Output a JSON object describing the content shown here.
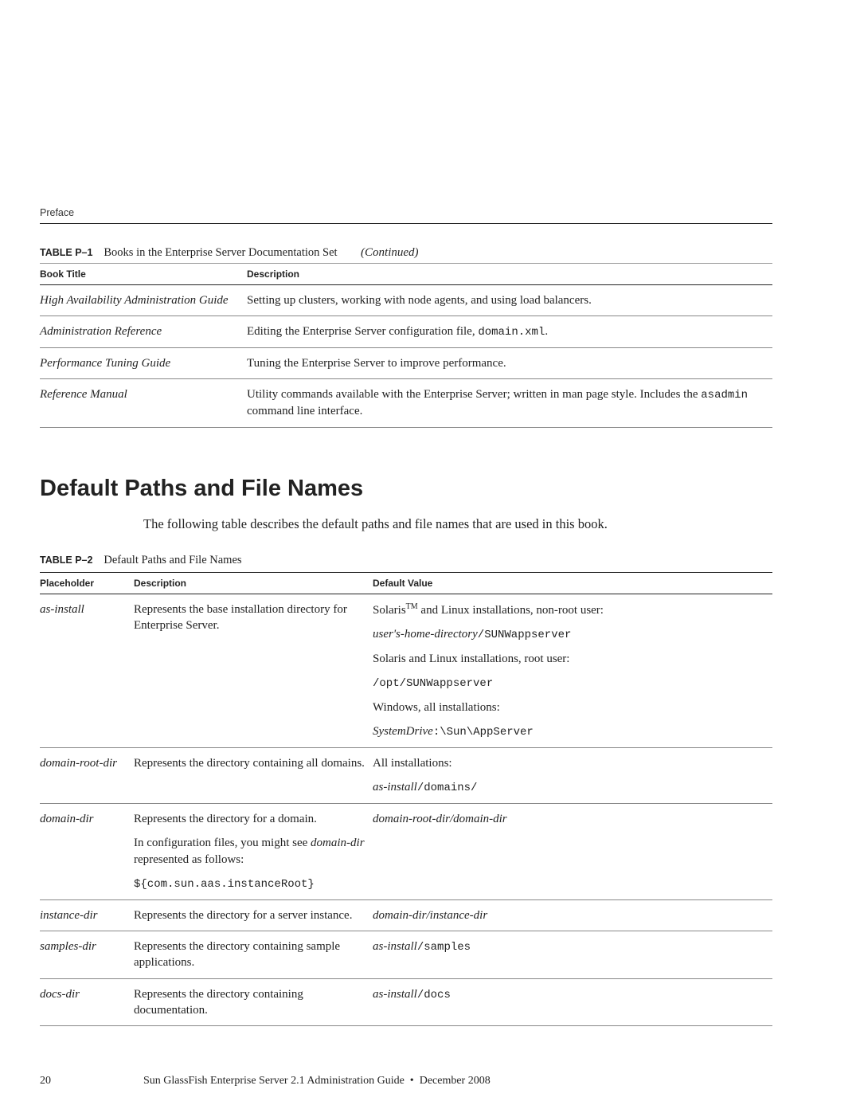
{
  "runningHead": "Preface",
  "table1": {
    "caption_label": "TABLE P–1",
    "caption_title": "Books in the Enterprise Server Documentation Set",
    "caption_cont": "(Continued)",
    "columns": [
      "Book Title",
      "Description"
    ],
    "rows": [
      {
        "title": "High Availability Administration Guide",
        "desc_plain": "Setting up clusters, working with node agents, and using load balancers."
      },
      {
        "title": "Administration Reference",
        "desc_pre": "Editing the Enterprise Server configuration file, ",
        "desc_code": "domain.xml",
        "desc_post": "."
      },
      {
        "title": "Performance Tuning Guide",
        "desc_plain": "Tuning the Enterprise Server to improve performance."
      },
      {
        "title": "Reference Manual",
        "desc_pre": "Utility commands available with the Enterprise Server; written in man page style. Includes the ",
        "desc_code": "asadmin",
        "desc_post": " command line interface."
      }
    ]
  },
  "sectionHeading": "Default Paths and File Names",
  "sectionIntro": "The following table describes the default paths and file names that are used in this book.",
  "table2": {
    "caption_label": "TABLE P–2",
    "caption_title": "Default Paths and File Names",
    "columns": [
      "Placeholder",
      "Description",
      "Default Value"
    ],
    "rows": {
      "r1": {
        "ph": "as-install",
        "desc": "Represents the base installation directory for Enterprise Server.",
        "v1a": "Solaris",
        "v1tm": "TM",
        "v1b": " and Linux installations, non-root user:",
        "v2i": "user's-home-directory",
        "v2c": "/SUNWappserver",
        "v3": "Solaris and Linux installations, root user:",
        "v4c": "/opt/SUNWappserver",
        "v5": "Windows, all installations:",
        "v6i": "SystemDrive",
        "v6c": ":\\Sun\\AppServer"
      },
      "r2": {
        "ph": "domain-root-dir",
        "desc": "Represents the directory containing all domains.",
        "v1": "All installations:",
        "v2i": "as-install",
        "v2c": "/domains/"
      },
      "r3": {
        "ph": "domain-dir",
        "d1": "Represents the directory for a domain.",
        "d2a": "In configuration files, you might see ",
        "d2i": "domain-dir",
        "d2b": " represented as follows:",
        "d3c": "${com.sun.aas.instanceRoot}",
        "vi1": "domain-root-dir",
        "vs": "/",
        "vi2": "domain-dir"
      },
      "r4": {
        "ph": "instance-dir",
        "desc": "Represents the directory for a server instance.",
        "vi1": "domain-dir",
        "vs": "/",
        "vi2": "instance-dir"
      },
      "r5": {
        "ph": "samples-dir",
        "desc": "Represents the directory containing sample applications.",
        "vi": "as-install",
        "vc": "/samples"
      },
      "r6": {
        "ph": "docs-dir",
        "desc": "Represents the directory containing documentation.",
        "vi": "as-install",
        "vc": "/docs"
      }
    }
  },
  "footer": {
    "pageNumber": "20",
    "text": "Sun GlassFish Enterprise Server 2.1 Administration Guide  •  December 2008"
  }
}
